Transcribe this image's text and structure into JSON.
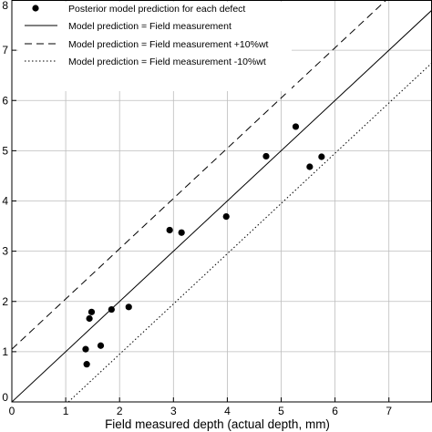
{
  "chart_data": {
    "type": "scatter",
    "title": "",
    "xlabel": "Field measured depth (actual depth, mm)",
    "ylabel": "",
    "xlim": [
      0,
      7.8
    ],
    "ylim": [
      0,
      8
    ],
    "x_ticks": [
      0,
      1,
      2,
      3,
      4,
      5,
      6,
      7
    ],
    "y_ticks": [
      0,
      1,
      2,
      3,
      4,
      5,
      6,
      7,
      8
    ],
    "grid": true,
    "legend_position": "top-left",
    "series": [
      {
        "name": "Posterior model prediction for each defect",
        "kind": "points",
        "marker": "filled-circle",
        "color": "#000000",
        "x": [
          1.37,
          1.39,
          1.44,
          1.48,
          1.65,
          1.85,
          2.17,
          2.93,
          3.15,
          3.98,
          4.72,
          5.27,
          5.53,
          5.75
        ],
        "y": [
          1.05,
          0.75,
          1.66,
          1.79,
          1.12,
          1.84,
          1.89,
          3.42,
          3.37,
          3.69,
          4.89,
          5.48,
          4.68,
          4.88
        ]
      },
      {
        "name": "Model prediction = Field measurement",
        "kind": "line",
        "style": "solid",
        "color": "#000000",
        "x": [
          0,
          7.8
        ],
        "y": [
          0,
          7.8
        ]
      },
      {
        "name": "Model prediction = Field measurement +10%wt",
        "kind": "line",
        "style": "dashed",
        "color": "#000000",
        "x": [
          0,
          7.8
        ],
        "y": [
          1.05,
          8.85
        ]
      },
      {
        "name": "Model prediction = Field measurement -10%wt",
        "kind": "line",
        "style": "dotted",
        "color": "#000000",
        "x": [
          1.05,
          7.8
        ],
        "y": [
          0,
          6.75
        ]
      }
    ]
  }
}
